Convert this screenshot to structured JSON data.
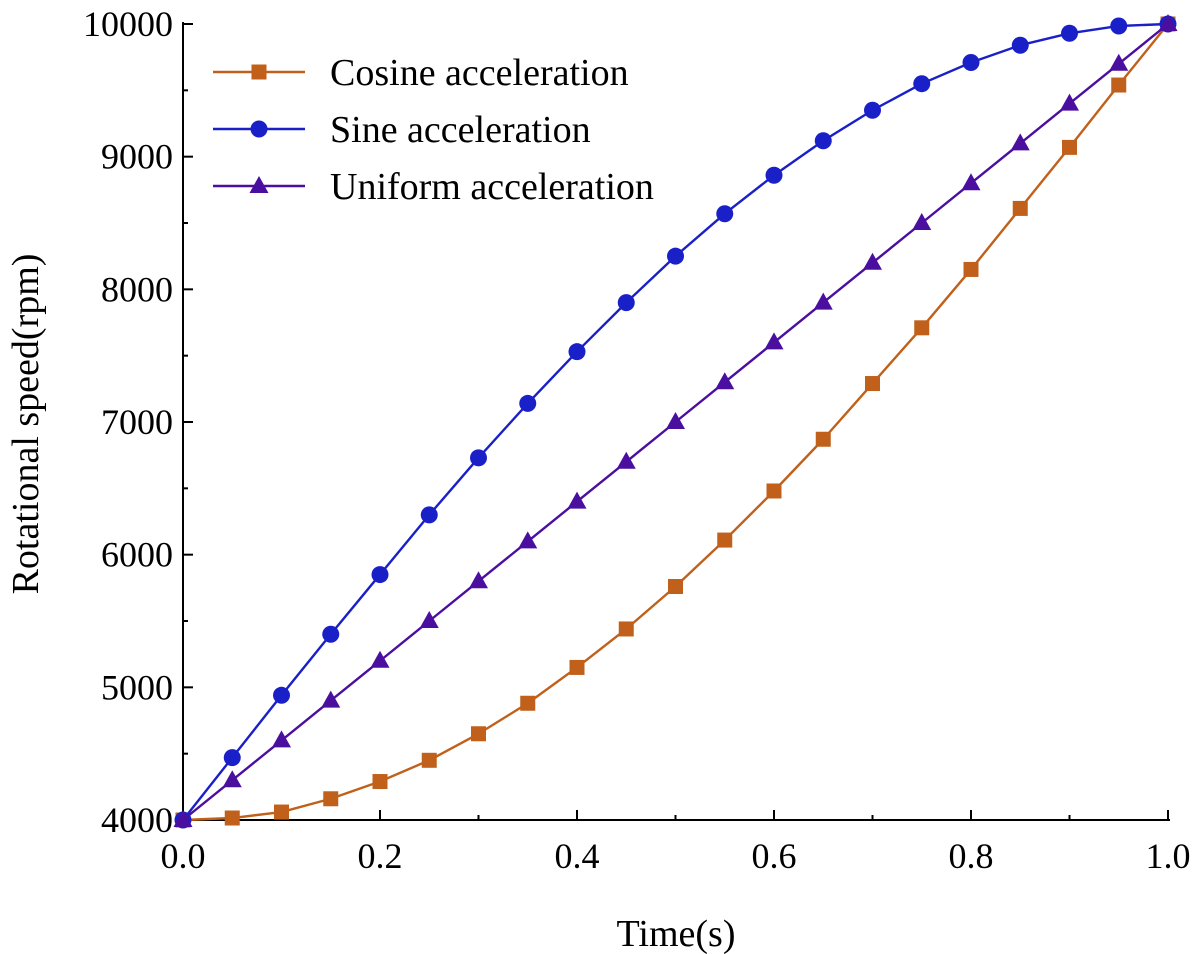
{
  "chart_data": {
    "type": "line",
    "title": "",
    "xlabel": "Time(s)",
    "ylabel": "Rotational speed(rpm)",
    "xlim": [
      0,
      1.0
    ],
    "ylim": [
      4000,
      10000
    ],
    "x_ticks": [
      "0.0",
      "0.2",
      "0.4",
      "0.6",
      "0.8",
      "1.0"
    ],
    "y_ticks": [
      "4000",
      "5000",
      "6000",
      "7000",
      "8000",
      "9000",
      "10000"
    ],
    "grid": false,
    "legend_position": "top-left",
    "x": [
      0.0,
      0.05,
      0.1,
      0.15,
      0.2,
      0.25,
      0.3,
      0.35,
      0.4,
      0.45,
      0.5,
      0.55,
      0.6,
      0.65,
      0.7,
      0.75,
      0.8,
      0.85,
      0.9,
      0.95,
      1.0
    ],
    "series": [
      {
        "name": "Cosine acceleration",
        "color": "#C0601A",
        "marker": "square",
        "values": [
          4000,
          4015,
          4060,
          4160,
          4290,
          4450,
          4650,
          4880,
          5150,
          5440,
          5760,
          6110,
          6480,
          6870,
          7290,
          7710,
          8150,
          8610,
          9070,
          9540,
          10000
        ]
      },
      {
        "name": "Sine acceleration",
        "color": "#1A20C8",
        "marker": "circle",
        "values": [
          4000,
          4470,
          4940,
          5400,
          5850,
          6300,
          6730,
          7140,
          7530,
          7900,
          8250,
          8570,
          8860,
          9120,
          9350,
          9550,
          9710,
          9840,
          9930,
          9985,
          10000
        ]
      },
      {
        "name": "Uniform acceleration",
        "color": "#4B0FA0",
        "marker": "triangle",
        "values": [
          4000,
          4300,
          4600,
          4900,
          5200,
          5500,
          5800,
          6100,
          6400,
          6700,
          7000,
          7300,
          7600,
          7900,
          8200,
          8500,
          8800,
          9100,
          9400,
          9700,
          10000
        ]
      }
    ]
  }
}
